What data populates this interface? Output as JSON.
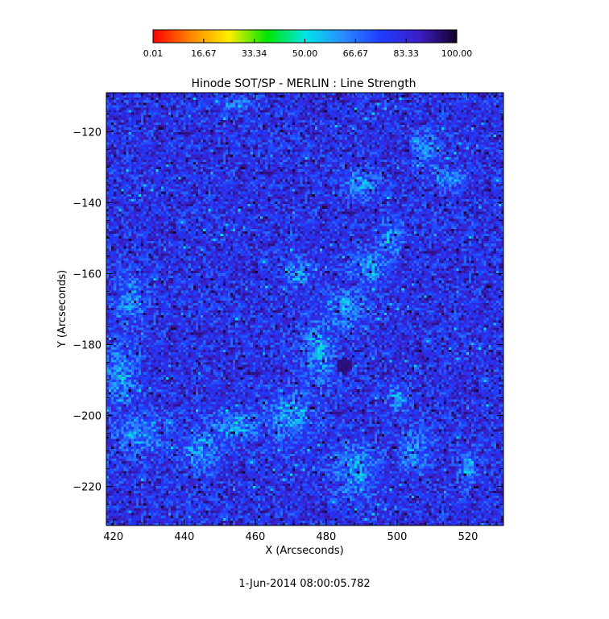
{
  "chart_data": {
    "type": "heatmap",
    "title": "Hinode SOT/SP - MERLIN : Line Strength",
    "xlabel": "X (Arcseconds)",
    "ylabel": "Y (Arcseconds)",
    "footer": "1-Jun-2014 08:00:05.782",
    "xlim": [
      418,
      530
    ],
    "ylim": [
      -231,
      -109
    ],
    "x_ticks": [
      420,
      440,
      460,
      480,
      500,
      520
    ],
    "y_ticks": [
      -120,
      -140,
      -160,
      -180,
      -200,
      -220
    ],
    "colorbar": {
      "min": 0.01,
      "max": 100.0,
      "tick_labels": [
        "0.01",
        "16.67",
        "33.34",
        "50.00",
        "66.67",
        "83.33",
        "100.00"
      ],
      "colors": [
        "#ff0000",
        "#ff8800",
        "#ffee00",
        "#00e600",
        "#00e6e6",
        "#2a8cff",
        "#1e3cff",
        "#3c1ec8",
        "#140028"
      ]
    },
    "features": {
      "pore_center": [
        485,
        -186
      ],
      "pore_radius": 2.2,
      "background_level": 80,
      "bright_regions": [
        {
          "x": 425,
          "y": -168,
          "rx": 5,
          "ry": 7
        },
        {
          "x": 422,
          "y": -188,
          "rx": 5,
          "ry": 10
        },
        {
          "x": 428,
          "y": -205,
          "rx": 8,
          "ry": 6
        },
        {
          "x": 445,
          "y": -210,
          "rx": 6,
          "ry": 6
        },
        {
          "x": 455,
          "y": -203,
          "rx": 8,
          "ry": 5
        },
        {
          "x": 470,
          "y": -200,
          "rx": 8,
          "ry": 8
        },
        {
          "x": 478,
          "y": -182,
          "rx": 5,
          "ry": 10
        },
        {
          "x": 485,
          "y": -170,
          "rx": 7,
          "ry": 6
        },
        {
          "x": 492,
          "y": -158,
          "rx": 6,
          "ry": 5
        },
        {
          "x": 498,
          "y": -150,
          "rx": 4,
          "ry": 5
        },
        {
          "x": 490,
          "y": -135,
          "rx": 5,
          "ry": 4
        },
        {
          "x": 508,
          "y": -125,
          "rx": 4,
          "ry": 5
        },
        {
          "x": 515,
          "y": -133,
          "rx": 5,
          "ry": 3
        },
        {
          "x": 472,
          "y": -160,
          "rx": 4,
          "ry": 4
        },
        {
          "x": 488,
          "y": -215,
          "rx": 7,
          "ry": 8
        },
        {
          "x": 505,
          "y": -210,
          "rx": 5,
          "ry": 6
        },
        {
          "x": 500,
          "y": -195,
          "rx": 3,
          "ry": 4
        },
        {
          "x": 455,
          "y": -112,
          "rx": 4,
          "ry": 2
        },
        {
          "x": 520,
          "y": -215,
          "rx": 3,
          "ry": 5
        }
      ]
    }
  }
}
